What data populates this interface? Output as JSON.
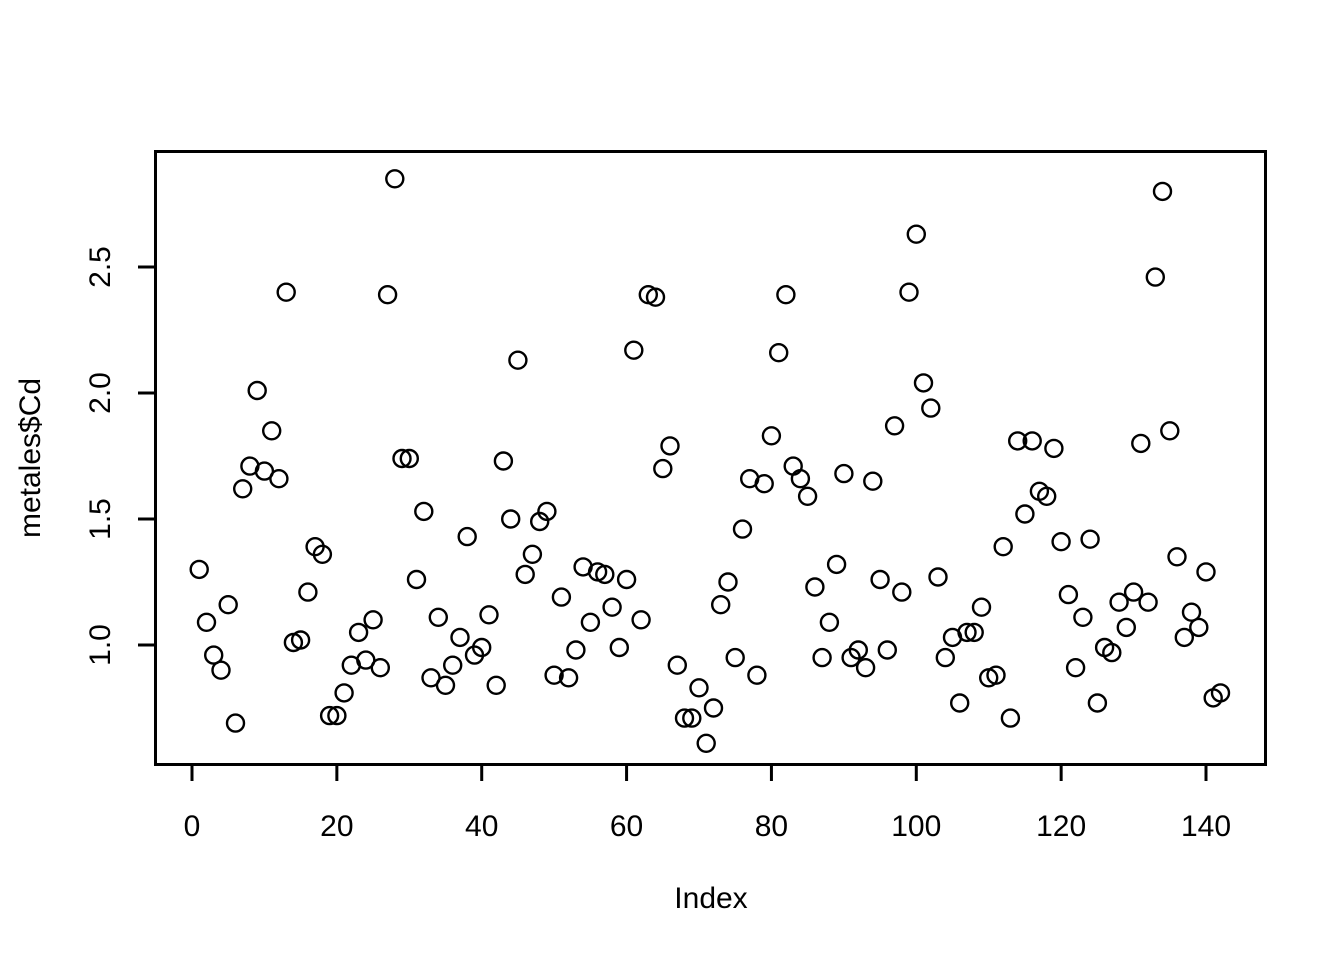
{
  "chart_data": {
    "type": "scatter",
    "title": "",
    "xlabel": "Index",
    "ylabel": "metales$Cd",
    "x_description": "1-based observation index (1..142)",
    "n_points": 142,
    "y": [
      1.3,
      1.09,
      0.96,
      0.9,
      1.16,
      0.69,
      1.62,
      1.71,
      2.01,
      1.69,
      1.85,
      1.66,
      2.4,
      1.01,
      1.02,
      1.21,
      1.39,
      1.36,
      0.72,
      0.72,
      0.81,
      0.92,
      1.05,
      0.94,
      1.1,
      0.91,
      2.39,
      2.85,
      1.74,
      1.74,
      1.26,
      1.53,
      0.87,
      1.11,
      0.84,
      0.92,
      1.03,
      1.43,
      0.96,
      0.99,
      1.12,
      0.84,
      1.73,
      1.5,
      2.13,
      1.28,
      1.36,
      1.49,
      1.53,
      0.88,
      1.19,
      0.87,
      0.98,
      1.31,
      1.09,
      1.29,
      1.28,
      1.15,
      0.99,
      1.26,
      2.17,
      1.1,
      2.39,
      2.38,
      1.7,
      1.79,
      0.92,
      0.71,
      0.71,
      0.83,
      0.61,
      0.75,
      1.16,
      1.25,
      0.95,
      1.46,
      1.66,
      0.88,
      1.64,
      1.83,
      2.16,
      2.39,
      1.71,
      1.66,
      1.59,
      1.23,
      0.95,
      1.09,
      1.32,
      1.68,
      0.95,
      0.98,
      0.91,
      1.65,
      1.26,
      0.98,
      1.87,
      1.21,
      2.4,
      2.63,
      2.04,
      1.94,
      1.27,
      0.95,
      1.03,
      0.77,
      1.05,
      1.05,
      1.15,
      0.87,
      0.88,
      1.39,
      0.71,
      1.81,
      1.52,
      1.81,
      1.61,
      1.59,
      1.78,
      1.41,
      1.2,
      0.91,
      1.11,
      1.42,
      0.77,
      0.99,
      0.97,
      1.17,
      1.07,
      1.21,
      1.8,
      1.17,
      2.46,
      2.8,
      1.85,
      1.35,
      1.03,
      1.13,
      1.07,
      1.29,
      0.79,
      0.81
    ],
    "x_ticks": {
      "values": [
        0,
        20,
        40,
        60,
        80,
        100,
        120,
        140
      ],
      "labels": [
        "0",
        "20",
        "40",
        "60",
        "80",
        "100",
        "120",
        "140"
      ]
    },
    "y_ticks": {
      "values": [
        1.0,
        1.5,
        2.0,
        2.5
      ],
      "labels": [
        "1.0",
        "1.5",
        "2.0",
        "2.5"
      ]
    },
    "xlim": [
      -4.8,
      147.8
    ],
    "ylim": [
      0.53,
      2.95
    ],
    "grid": false,
    "legend": "none",
    "marker": {
      "shape": "open-circle",
      "stroke_color": "#000000",
      "fill": "none"
    },
    "frame_color": "#000000",
    "background_color": "#ffffff"
  }
}
